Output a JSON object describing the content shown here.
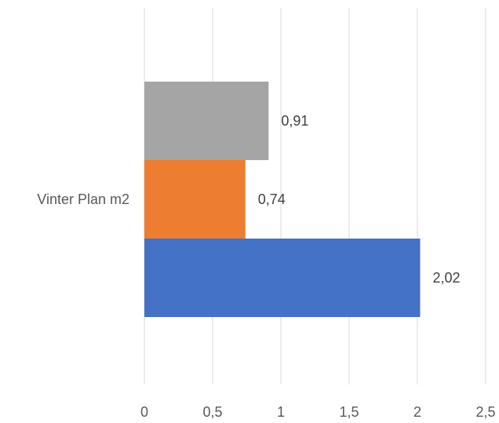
{
  "chart_data": {
    "type": "bar",
    "orientation": "horizontal",
    "categories": [
      "Vinter Plan m2"
    ],
    "series": [
      {
        "values": [
          2.02
        ],
        "color": "#4472C4"
      },
      {
        "values": [
          0.74
        ],
        "color": "#ED7D31"
      },
      {
        "values": [
          0.91
        ],
        "color": "#A5A5A5"
      }
    ],
    "data_labels": [
      "2,02",
      "0,74",
      "0,91"
    ],
    "x_ticks": [
      "0",
      "0,5",
      "1",
      "1,5",
      "2",
      "2,5"
    ],
    "xlim": [
      0,
      2.5
    ],
    "grid": "vertical",
    "legend": "none"
  }
}
